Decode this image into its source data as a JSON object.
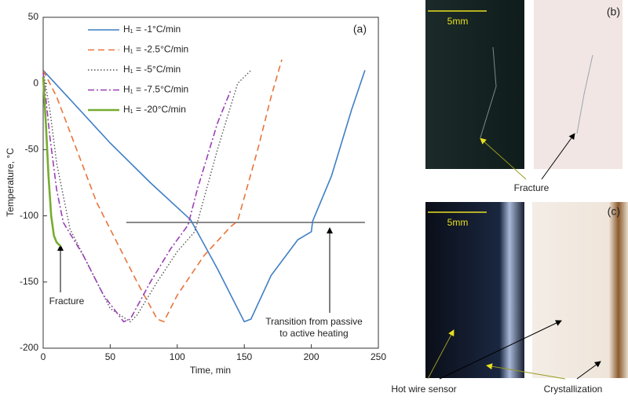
{
  "chart_data": {
    "type": "line",
    "xlabel": "Time, min",
    "ylabel": "Temperature, °C",
    "panel_label": "(a)",
    "xlim": [
      0,
      250
    ],
    "xticks": [
      0,
      50,
      100,
      150,
      200,
      250
    ],
    "ylim": [
      -200,
      50
    ],
    "yticks": [
      -200,
      -150,
      -100,
      -50,
      0,
      50
    ],
    "legend": "upper-left",
    "series": [
      {
        "name": "H₁ = -1°C/min",
        "color": "#3f7fc4",
        "dash": "",
        "width": 1.6,
        "x": [
          0,
          20,
          50,
          80,
          110,
          130,
          150,
          155,
          170,
          190,
          200,
          201,
          215,
          230,
          240
        ],
        "values": [
          10,
          -12,
          -45,
          -75,
          -103,
          -140,
          -180,
          -178,
          -145,
          -118,
          -112,
          -104,
          -70,
          -20,
          10
        ]
      },
      {
        "name": "H₁ = -2.5°C/min",
        "color": "#e8743b",
        "dash": "8 5",
        "width": 1.6,
        "x": [
          0,
          10,
          25,
          40,
          55,
          70,
          85,
          90,
          100,
          120,
          140,
          145,
          160,
          170,
          178
        ],
        "values": [
          10,
          -10,
          -50,
          -90,
          -120,
          -150,
          -178,
          -180,
          -160,
          -130,
          -108,
          -104,
          -50,
          -10,
          18
        ]
      },
      {
        "name": "H₁ = -5°C/min",
        "color": "#555555",
        "dash": "1.5 2.5",
        "width": 1.4,
        "x": [
          0,
          5,
          10,
          20,
          35,
          50,
          65,
          70,
          85,
          100,
          113,
          115,
          130,
          145,
          155
        ],
        "values": [
          10,
          -20,
          -60,
          -110,
          -140,
          -170,
          -180,
          -175,
          -150,
          -127,
          -112,
          -105,
          -50,
          0,
          10
        ]
      },
      {
        "name": "H₁ = -7.5°C/min",
        "color": "#9b3fb5",
        "dash": "8 3 2 3",
        "width": 1.6,
        "x": [
          0,
          5,
          10,
          15,
          30,
          45,
          60,
          65,
          80,
          95,
          108,
          115,
          130,
          140
        ],
        "values": [
          8,
          -40,
          -80,
          -105,
          -130,
          -160,
          -180,
          -178,
          -150,
          -125,
          -107,
          -80,
          -30,
          -5
        ]
      },
      {
        "name": "H₁ = -20°C/min",
        "color": "#77ac30",
        "dash": "",
        "width": 2.6,
        "x": [
          0,
          2,
          4,
          6,
          8,
          10,
          13
        ],
        "values": [
          5,
          -30,
          -70,
          -100,
          -115,
          -120,
          -123
        ]
      }
    ],
    "reference_line": {
      "y": -105,
      "x": [
        62,
        240
      ],
      "color": "#444444"
    },
    "annotations": [
      "Fracture",
      "Transition from passive",
      "to active heating"
    ]
  },
  "panels": {
    "b": {
      "label": "(b)",
      "scale": "5mm",
      "caption": "Fracture"
    },
    "c": {
      "label": "(c)",
      "scale": "5mm",
      "left_caption": "Hot wire sensor",
      "right_caption": "Crystallization"
    }
  }
}
